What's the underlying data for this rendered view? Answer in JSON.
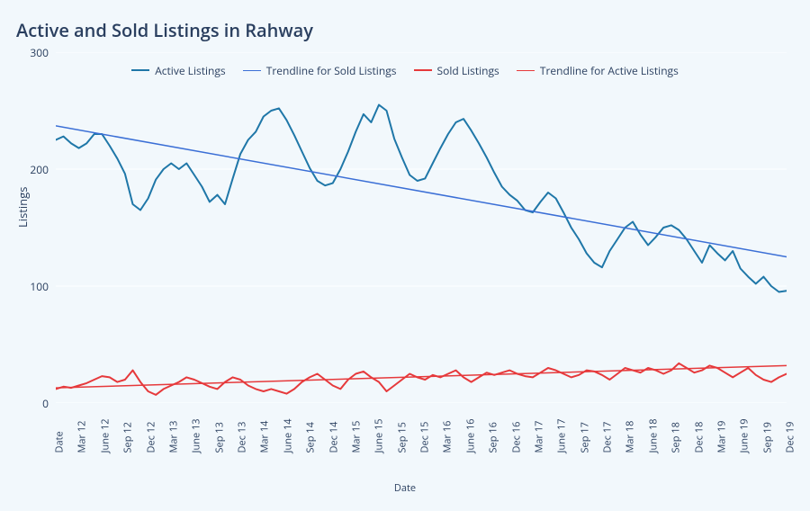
{
  "chart": {
    "type": "line",
    "title": "Active and Sold Listings in Rahway",
    "title_fontsize": 20,
    "xlabel": "Date",
    "ylabel": "Listings",
    "label_fontsize": 12,
    "background_color": "#f2f8fc",
    "plot_background_color": "#f2f8fc",
    "grid_color": "#ffffff",
    "axis_color": "#2a3f5f",
    "text_color": "#2a3f5f",
    "ylim": [
      0,
      300
    ],
    "yticks": [
      0,
      100,
      200,
      300
    ],
    "tick_fontsize": 12,
    "xtick_rotation": -90,
    "categories": [
      "Date",
      "Mar 12",
      "June 12",
      "Sep 12",
      "Dec 12",
      "Mar 13",
      "June 13",
      "Sep 13",
      "Dec 13",
      "Mar 14",
      "June 14",
      "Sep 14",
      "Dec 14",
      "Mar 15",
      "June 15",
      "Sep 15",
      "Dec 15",
      "Mar 16",
      "June 16",
      "Sep 16",
      "Dec 16",
      "Mar 17",
      "June 17",
      "Sep 17",
      "Dec 17",
      "Mar 18",
      "June 18",
      "Sep 18",
      "Dec 18",
      "Mar 19",
      "June 19",
      "Sep 19",
      "Dec 19"
    ],
    "legend": {
      "position": "top-center",
      "fontsize": 12,
      "items": [
        {
          "label": "Active Listings",
          "color": "#1f77a8",
          "width": 2
        },
        {
          "label": "Trendline for Sold Listings",
          "color": "#3b6fd6",
          "width": 1.5
        },
        {
          "label": "Sold Listings",
          "color": "#e6393b",
          "width": 2
        },
        {
          "label": "Trendline for Active Listings",
          "color": "#e6393b",
          "width": 1.5
        }
      ]
    },
    "series": {
      "active": {
        "label": "Active Listings",
        "color": "#1f77a8",
        "width": 2,
        "values": [
          225,
          228,
          222,
          218,
          222,
          230,
          230,
          220,
          209,
          196,
          170,
          165,
          175,
          191,
          200,
          205,
          200,
          205,
          195,
          185,
          172,
          178,
          170,
          192,
          213,
          225,
          232,
          245,
          250,
          252,
          242,
          229,
          215,
          201,
          190,
          186,
          188,
          200,
          215,
          232,
          247,
          240,
          255,
          250,
          226,
          210,
          195,
          190,
          192,
          205,
          218,
          230,
          240,
          243,
          233,
          222,
          210,
          197,
          185,
          178,
          173,
          165,
          163,
          172,
          180,
          175,
          163,
          150,
          140,
          128,
          120,
          116,
          130,
          140,
          150,
          155,
          144,
          135,
          142,
          150,
          152,
          148,
          140,
          130,
          120,
          135,
          128,
          122,
          130,
          115,
          108,
          102,
          108,
          100,
          95,
          96
        ]
      },
      "sold": {
        "label": "Sold Listings",
        "color": "#e6393b",
        "width": 2,
        "values": [
          12,
          14,
          13,
          15,
          17,
          20,
          23,
          22,
          18,
          20,
          28,
          18,
          10,
          7,
          12,
          15,
          18,
          22,
          20,
          17,
          14,
          12,
          18,
          22,
          20,
          15,
          12,
          10,
          12,
          10,
          8,
          12,
          18,
          22,
          25,
          20,
          15,
          12,
          20,
          25,
          27,
          22,
          18,
          10,
          15,
          20,
          25,
          22,
          20,
          24,
          22,
          25,
          28,
          22,
          18,
          22,
          26,
          24,
          26,
          28,
          25,
          23,
          22,
          26,
          30,
          28,
          25,
          22,
          24,
          28,
          27,
          24,
          20,
          25,
          30,
          28,
          26,
          30,
          28,
          25,
          28,
          34,
          30,
          26,
          28,
          32,
          30,
          26,
          22,
          26,
          30,
          24,
          20,
          18,
          22,
          25
        ]
      },
      "trend_active": {
        "label": "Trendline for Sold Listings",
        "color": "#3b6fd6",
        "width": 1.5,
        "start": 237,
        "end": 125
      },
      "trend_sold": {
        "label": "Trendline for Active Listings",
        "color": "#e6393b",
        "width": 1.5,
        "start": 13,
        "end": 32
      }
    }
  }
}
